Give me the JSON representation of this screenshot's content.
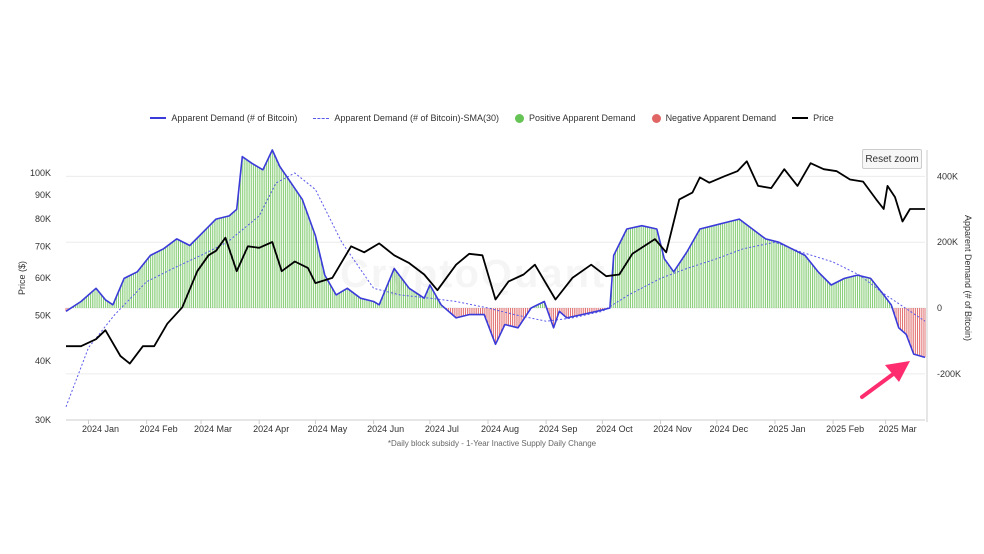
{
  "legend": {
    "items": [
      {
        "label": "Apparent Demand (# of Bitcoin)",
        "kind": "line",
        "color": "#3b3bd9"
      },
      {
        "label": "Apparent Demand (# of Bitcoin)-SMA(30)",
        "kind": "dash",
        "color": "#5b5bea"
      },
      {
        "label": "Positive Apparent Demand",
        "kind": "dot",
        "color": "#66c355"
      },
      {
        "label": "Negative Apparent Demand",
        "kind": "dot",
        "color": "#e06666"
      },
      {
        "label": "Price",
        "kind": "line",
        "color": "#000000"
      }
    ]
  },
  "reset_zoom_label": "Reset zoom",
  "watermark": "CryptoQuant",
  "footnote": "*Daily block subsidy - 1-Year Inactive Supply Daily Change",
  "colors": {
    "positive": "#7cc96a",
    "negative": "#e06666",
    "demand_line": "#3b3bd9",
    "sma_line": "#5b5bea",
    "price_line": "#000000",
    "arrow": "#ff2d6f"
  },
  "chart_data": {
    "type": "line",
    "x_tick_labels": [
      "2024 Jan",
      "2024 Feb",
      "2024 Mar",
      "2024 Apr",
      "2024 May",
      "2024 Jun",
      "2024 Jul",
      "2024 Aug",
      "2024 Sep",
      "2024 Oct",
      "2024 Nov",
      "2024 Dec",
      "2025 Jan",
      "2025 Feb",
      "2025 Mar"
    ],
    "x_range": [
      "2023-12-20",
      "2025-03-22"
    ],
    "left_axis": {
      "ylabel": "Price ($)",
      "scale": "log",
      "ylim": [
        30000,
        112000
      ],
      "ticks": [
        30000,
        40000,
        50000,
        60000,
        70000,
        80000,
        90000,
        100000
      ],
      "tick_labels": [
        "30K",
        "40K",
        "50K",
        "60K",
        "70K",
        "80K",
        "90K",
        "100K"
      ]
    },
    "right_axis": {
      "ylabel": "Apparent Demand (# of Bitcoin)",
      "ylim": [
        -340000,
        480000
      ],
      "ticks": [
        -200000,
        0,
        200000,
        400000
      ],
      "tick_labels": [
        "-200K",
        "0",
        "200K",
        "400K"
      ]
    },
    "demand": {
      "name": "Apparent Demand (# of Bitcoin)",
      "x": [
        "2023-12-20",
        "2023-12-28",
        "2024-01-05",
        "2024-01-10",
        "2024-01-14",
        "2024-01-20",
        "2024-01-27",
        "2024-02-03",
        "2024-02-10",
        "2024-02-17",
        "2024-02-24",
        "2024-03-02",
        "2024-03-09",
        "2024-03-16",
        "2024-03-20",
        "2024-03-23",
        "2024-03-28",
        "2024-04-03",
        "2024-04-08",
        "2024-04-12",
        "2024-04-18",
        "2024-04-24",
        "2024-05-01",
        "2024-05-06",
        "2024-05-12",
        "2024-05-18",
        "2024-05-25",
        "2024-06-01",
        "2024-06-04",
        "2024-06-12",
        "2024-06-20",
        "2024-06-28",
        "2024-07-01",
        "2024-07-07",
        "2024-07-15",
        "2024-07-22",
        "2024-07-30",
        "2024-08-05",
        "2024-08-10",
        "2024-08-17",
        "2024-08-24",
        "2024-08-31",
        "2024-09-05",
        "2024-09-08",
        "2024-09-12",
        "2024-09-20",
        "2024-09-28",
        "2024-10-05",
        "2024-10-07",
        "2024-10-14",
        "2024-10-22",
        "2024-10-30",
        "2024-11-03",
        "2024-11-08",
        "2024-11-15",
        "2024-11-22",
        "2024-11-29",
        "2024-12-06",
        "2024-12-13",
        "2024-12-20",
        "2024-12-27",
        "2025-01-03",
        "2025-01-10",
        "2025-01-17",
        "2025-01-24",
        "2025-01-31",
        "2025-02-07",
        "2025-02-14",
        "2025-02-21",
        "2025-02-28",
        "2025-03-04",
        "2025-03-08",
        "2025-03-12",
        "2025-03-16",
        "2025-03-22"
      ],
      "y": [
        -10000,
        20000,
        60000,
        25000,
        10000,
        90000,
        110000,
        160000,
        180000,
        210000,
        190000,
        230000,
        270000,
        280000,
        300000,
        460000,
        440000,
        420000,
        480000,
        430000,
        380000,
        330000,
        220000,
        100000,
        40000,
        60000,
        30000,
        20000,
        10000,
        120000,
        60000,
        30000,
        70000,
        10000,
        -30000,
        -20000,
        -20000,
        -110000,
        -50000,
        -60000,
        0,
        20000,
        -60000,
        -10000,
        -30000,
        -20000,
        -10000,
        0,
        160000,
        240000,
        250000,
        240000,
        150000,
        110000,
        170000,
        240000,
        250000,
        260000,
        270000,
        240000,
        210000,
        200000,
        180000,
        160000,
        110000,
        70000,
        90000,
        100000,
        90000,
        40000,
        10000,
        -60000,
        -80000,
        -140000,
        -150000
      ]
    },
    "sma30": {
      "name": "Apparent Demand (# of Bitcoin)-SMA(30)",
      "x": [
        "2023-12-20",
        "2024-01-01",
        "2024-01-15",
        "2024-02-01",
        "2024-02-15",
        "2024-03-01",
        "2024-03-15",
        "2024-04-01",
        "2024-04-10",
        "2024-04-20",
        "2024-05-01",
        "2024-05-15",
        "2024-06-01",
        "2024-06-15",
        "2024-07-01",
        "2024-07-15",
        "2024-08-01",
        "2024-08-15",
        "2024-09-01",
        "2024-09-15",
        "2024-10-01",
        "2024-10-15",
        "2024-11-01",
        "2024-11-15",
        "2024-12-01",
        "2024-12-15",
        "2025-01-01",
        "2025-01-15",
        "2025-02-01",
        "2025-02-15",
        "2025-03-01",
        "2025-03-22"
      ],
      "y": [
        -300000,
        -120000,
        -20000,
        80000,
        120000,
        160000,
        200000,
        280000,
        380000,
        410000,
        360000,
        200000,
        60000,
        40000,
        30000,
        20000,
        0,
        -20000,
        -40000,
        -30000,
        -10000,
        40000,
        90000,
        120000,
        150000,
        180000,
        200000,
        170000,
        140000,
        100000,
        40000,
        -40000
      ]
    },
    "price": {
      "name": "Price",
      "x": [
        "2023-12-20",
        "2023-12-28",
        "2024-01-05",
        "2024-01-10",
        "2024-01-18",
        "2024-01-23",
        "2024-01-30",
        "2024-02-05",
        "2024-02-12",
        "2024-02-20",
        "2024-02-28",
        "2024-03-05",
        "2024-03-09",
        "2024-03-14",
        "2024-03-20",
        "2024-03-26",
        "2024-04-01",
        "2024-04-08",
        "2024-04-13",
        "2024-04-20",
        "2024-04-27",
        "2024-05-01",
        "2024-05-10",
        "2024-05-20",
        "2024-05-27",
        "2024-06-04",
        "2024-06-12",
        "2024-06-20",
        "2024-06-28",
        "2024-07-05",
        "2024-07-15",
        "2024-07-22",
        "2024-07-29",
        "2024-08-05",
        "2024-08-12",
        "2024-08-20",
        "2024-08-26",
        "2024-09-06",
        "2024-09-15",
        "2024-09-25",
        "2024-10-03",
        "2024-10-10",
        "2024-10-17",
        "2024-10-29",
        "2024-11-04",
        "2024-11-11",
        "2024-11-18",
        "2024-11-22",
        "2024-11-27",
        "2024-12-05",
        "2024-12-12",
        "2024-12-17",
        "2024-12-23",
        "2024-12-30",
        "2025-01-06",
        "2025-01-13",
        "2025-01-20",
        "2025-01-27",
        "2025-02-03",
        "2025-02-10",
        "2025-02-17",
        "2025-02-24",
        "2025-02-28",
        "2025-03-02",
        "2025-03-06",
        "2025-03-10",
        "2025-03-14",
        "2025-03-22"
      ],
      "y": [
        43000,
        43000,
        44500,
        46500,
        41000,
        39500,
        43000,
        43000,
        48000,
        52000,
        62000,
        67000,
        68500,
        73000,
        62000,
        70000,
        69500,
        71500,
        62000,
        65000,
        63000,
        58500,
        60000,
        70000,
        68000,
        71000,
        67000,
        64500,
        61000,
        56500,
        64000,
        67500,
        67000,
        54000,
        59000,
        61000,
        64000,
        54000,
        60000,
        64000,
        60500,
        61000,
        67500,
        72500,
        68000,
        88000,
        91000,
        98000,
        95500,
        98500,
        101000,
        106000,
        94000,
        93000,
        102000,
        94000,
        105000,
        102000,
        101000,
        97000,
        96000,
        88000,
        84000,
        94000,
        89000,
        79000,
        84000,
        84000
      ]
    }
  }
}
